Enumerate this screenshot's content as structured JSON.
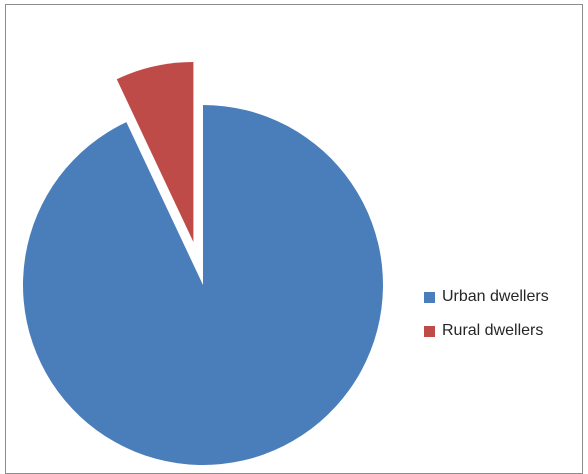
{
  "chart_data": {
    "type": "pie",
    "title": "",
    "exploded_slice": "Rural dwellers",
    "legend_placement": "right",
    "slices": [
      {
        "label": "Urban dwellers",
        "value": 93,
        "color": "#4a7ebb"
      },
      {
        "label": "Rural dwellers",
        "value": 7,
        "color": "#be4b48"
      }
    ]
  }
}
